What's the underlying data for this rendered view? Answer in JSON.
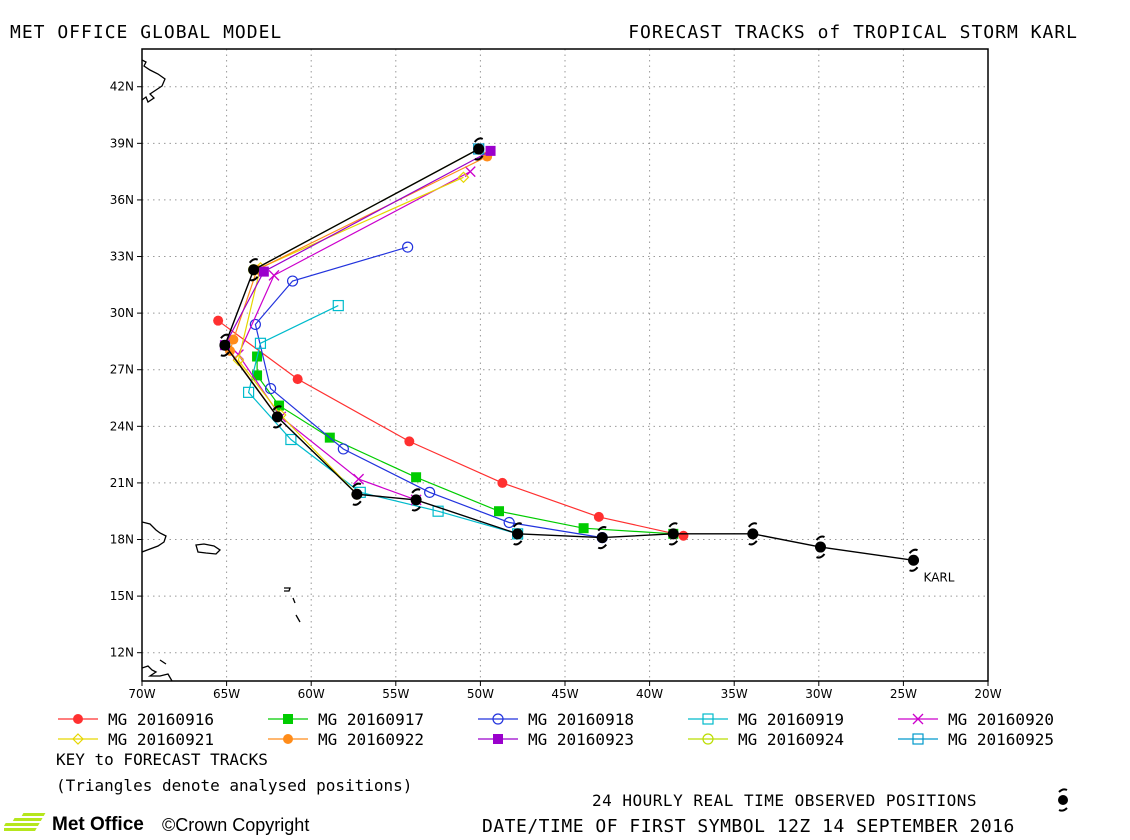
{
  "header": {
    "left_title": "MET OFFICE GLOBAL MODEL",
    "right_title": "FORECAST TRACKS of TROPICAL STORM KARL"
  },
  "map": {
    "storm_label": "KARL",
    "lon_range": [
      -70,
      -20
    ],
    "lat_range": [
      10.5,
      44
    ],
    "lat_ticks": [
      {
        "value": 42,
        "label": "42N"
      },
      {
        "value": 39,
        "label": "39N"
      },
      {
        "value": 36,
        "label": "36N"
      },
      {
        "value": 33,
        "label": "33N"
      },
      {
        "value": 30,
        "label": "30N"
      },
      {
        "value": 27,
        "label": "27N"
      },
      {
        "value": 24,
        "label": "24N"
      },
      {
        "value": 21,
        "label": "21N"
      },
      {
        "value": 18,
        "label": "18N"
      },
      {
        "value": 15,
        "label": "15N"
      },
      {
        "value": 12,
        "label": "12N"
      }
    ],
    "lon_ticks": [
      {
        "value": -70,
        "label": "70W"
      },
      {
        "value": -65,
        "label": "65W"
      },
      {
        "value": -60,
        "label": "60W"
      },
      {
        "value": -55,
        "label": "55W"
      },
      {
        "value": -50,
        "label": "50W"
      },
      {
        "value": -45,
        "label": "45W"
      },
      {
        "value": -40,
        "label": "40W"
      },
      {
        "value": -35,
        "label": "35W"
      },
      {
        "value": -30,
        "label": "30W"
      },
      {
        "value": -25,
        "label": "25W"
      },
      {
        "value": -20,
        "label": "20W"
      }
    ],
    "observed_track": [
      [
        -24.4,
        16.9
      ],
      [
        -29.9,
        17.6
      ],
      [
        -33.9,
        18.3
      ],
      [
        -38.6,
        18.3
      ],
      [
        -42.8,
        18.1
      ],
      [
        -47.8,
        18.3
      ],
      [
        -53.8,
        20.1
      ],
      [
        -57.3,
        20.4
      ],
      [
        -62.0,
        24.5
      ],
      [
        -65.1,
        28.3
      ],
      [
        -63.4,
        32.3
      ],
      [
        -50.1,
        38.7
      ]
    ],
    "forecast_tracks": [
      {
        "name": "MG 20160916",
        "color": "#ff3030",
        "marker": "filled-circle",
        "points": [
          [
            -38.0,
            18.2
          ],
          [
            -43.0,
            19.2
          ],
          [
            -48.7,
            21.0
          ],
          [
            -54.2,
            23.2
          ],
          [
            -60.8,
            26.5
          ],
          [
            -65.5,
            29.6
          ]
        ]
      },
      {
        "name": "MG 20160917",
        "color": "#00cc00",
        "marker": "filled-square",
        "points": [
          [
            -38.6,
            18.3
          ],
          [
            -43.9,
            18.6
          ],
          [
            -48.9,
            19.5
          ],
          [
            -53.8,
            21.3
          ],
          [
            -58.9,
            23.4
          ],
          [
            -61.9,
            25.1
          ],
          [
            -63.2,
            26.7
          ],
          [
            -63.2,
            27.7
          ]
        ]
      },
      {
        "name": "MG 20160918",
        "color": "#2233dd",
        "marker": "open-circle",
        "points": [
          [
            -42.8,
            18.1
          ],
          [
            -48.3,
            18.9
          ],
          [
            -53.0,
            20.5
          ],
          [
            -58.1,
            22.8
          ],
          [
            -62.4,
            26.0
          ],
          [
            -63.3,
            29.4
          ],
          [
            -61.1,
            31.7
          ],
          [
            -54.3,
            33.5
          ]
        ]
      },
      {
        "name": "MG 20160919",
        "color": "#00bbcc",
        "marker": "open-square",
        "points": [
          [
            -47.8,
            18.3
          ],
          [
            -52.5,
            19.5
          ],
          [
            -57.1,
            20.5
          ],
          [
            -61.2,
            23.3
          ],
          [
            -63.7,
            25.8
          ],
          [
            -63.0,
            28.4
          ],
          [
            -58.4,
            30.4
          ]
        ]
      },
      {
        "name": "MG 20160920",
        "color": "#cc00cc",
        "marker": "cross",
        "points": [
          [
            -53.8,
            20.1
          ],
          [
            -57.2,
            21.2
          ],
          [
            -61.8,
            24.5
          ],
          [
            -64.3,
            27.8
          ],
          [
            -62.2,
            32.0
          ],
          [
            -50.6,
            37.5
          ]
        ]
      },
      {
        "name": "MG 20160921",
        "color": "#e6d600",
        "marker": "open-diamond",
        "points": [
          [
            -57.3,
            20.4
          ],
          [
            -61.8,
            24.6
          ],
          [
            -64.3,
            27.5
          ],
          [
            -63.0,
            32.4
          ],
          [
            -51.0,
            37.2
          ]
        ]
      },
      {
        "name": "MG 20160922",
        "color": "#ff8c1a",
        "marker": "filled-circle",
        "points": [
          [
            -62.0,
            24.5
          ],
          [
            -64.8,
            28.0
          ],
          [
            -64.6,
            28.6
          ],
          [
            -63.2,
            32.3
          ],
          [
            -49.6,
            38.3
          ]
        ]
      },
      {
        "name": "MG 20160923",
        "color": "#9a00cc",
        "marker": "filled-square",
        "points": [
          [
            -65.1,
            28.3
          ],
          [
            -62.8,
            32.2
          ],
          [
            -49.4,
            38.6
          ]
        ]
      },
      {
        "name": "MG 20160924",
        "color": "#bbdd00",
        "marker": "open-circle",
        "points": [
          [
            -63.4,
            32.3
          ],
          [
            -50.1,
            38.7
          ]
        ]
      },
      {
        "name": "MG 20160925",
        "color": "#0099cc",
        "marker": "open-square",
        "points": [
          [
            -50.1,
            38.7
          ]
        ]
      }
    ]
  },
  "legend": {
    "key_title": "KEY to FORECAST TRACKS",
    "triangles_note": "(Triangles denote analysed positions)"
  },
  "footer": {
    "logo_text": "Met Office",
    "copyright": "©Crown Copyright",
    "observed_note": "24 HOURLY REAL TIME OBSERVED POSITIONS",
    "first_symbol": "DATE/TIME OF FIRST SYMBOL 12Z 14 SEPTEMBER 2016"
  }
}
